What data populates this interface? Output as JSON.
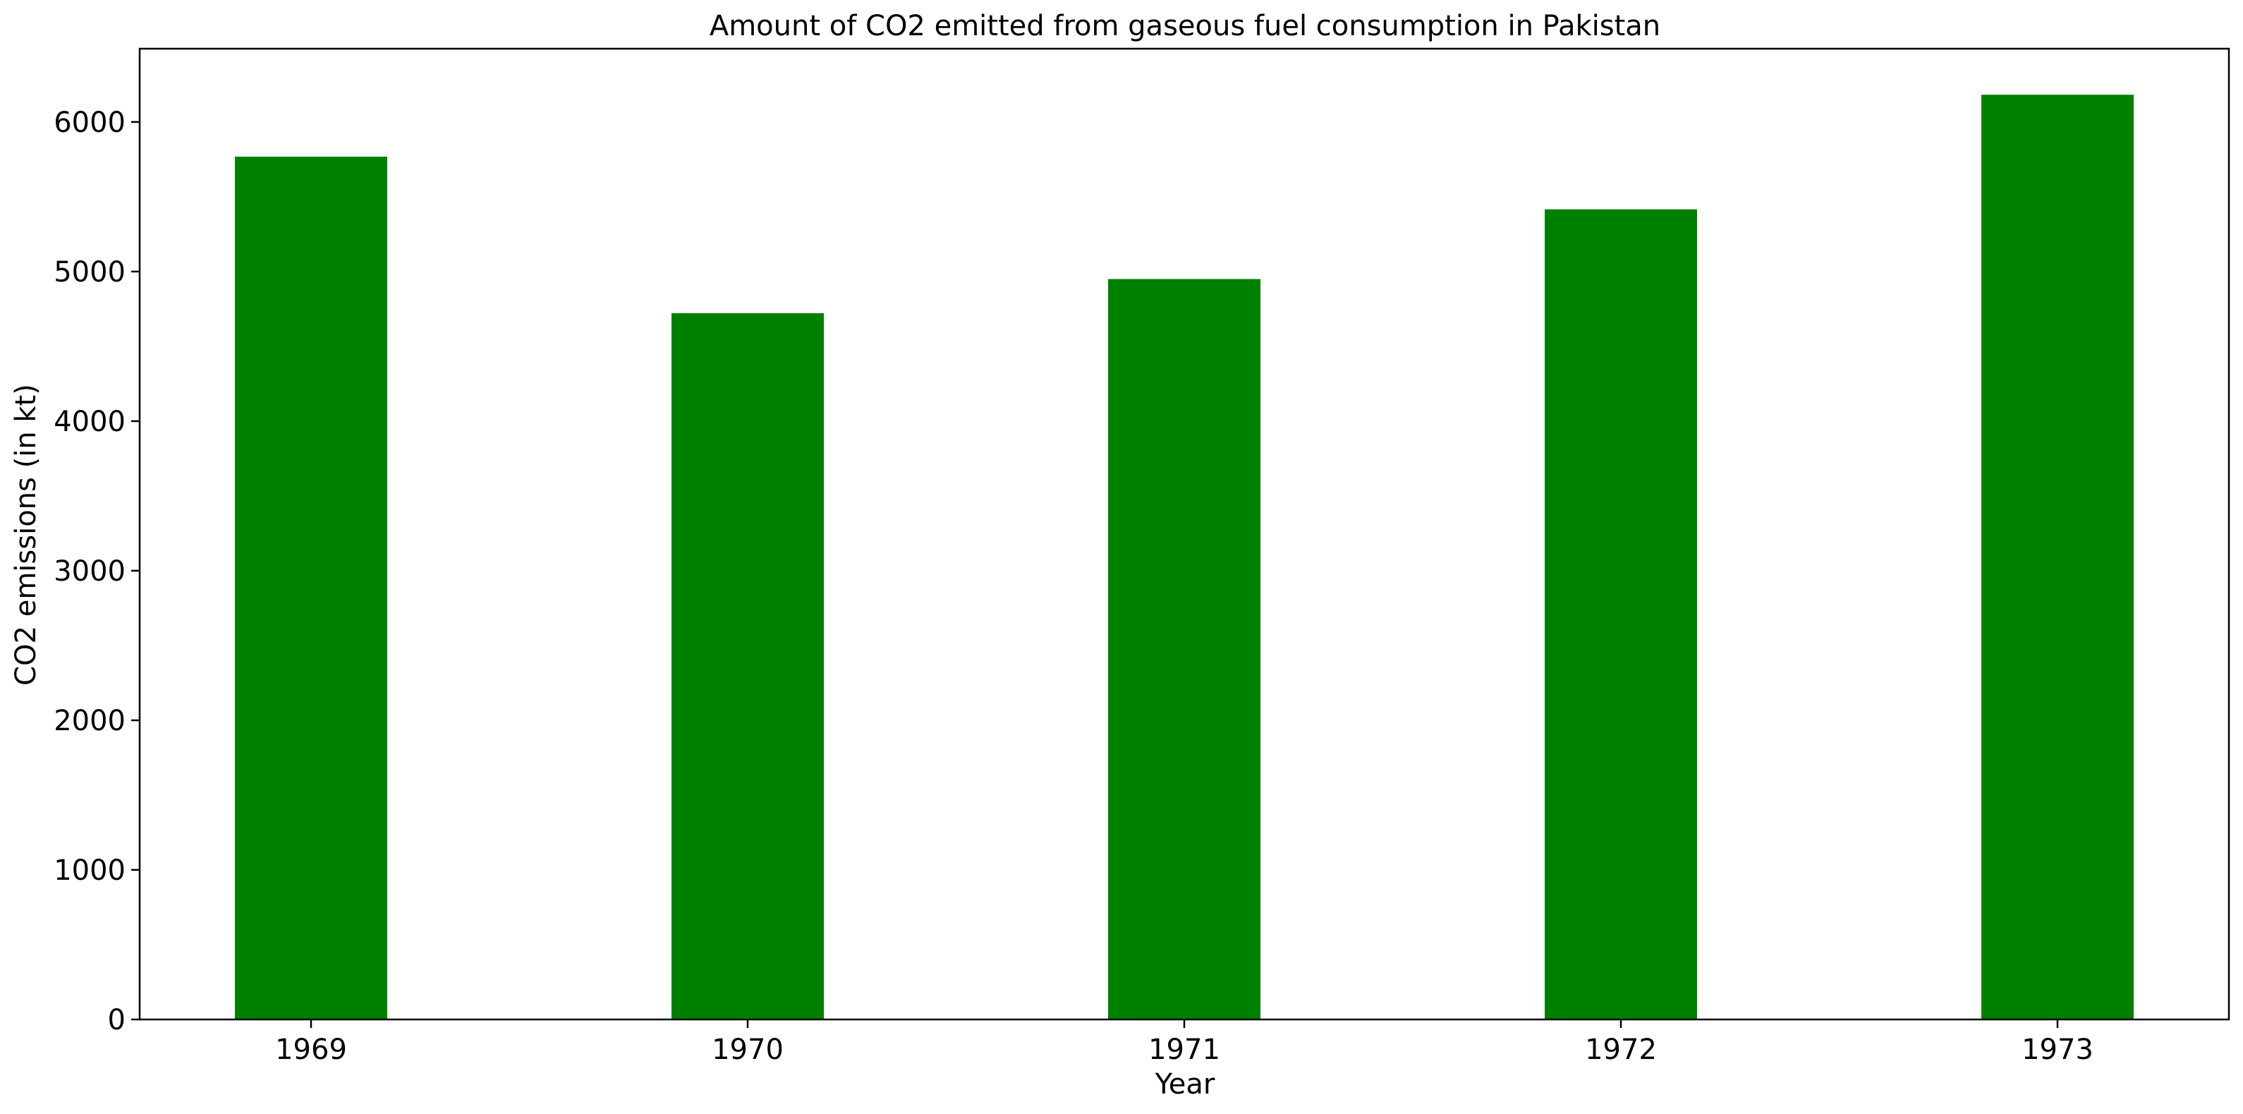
{
  "chart_data": {
    "type": "bar",
    "title": "Amount of CO2 emitted from gaseous fuel consumption in Pakistan",
    "xlabel": "Year",
    "ylabel": "CO2 emissions (in kt)",
    "categories": [
      "1969",
      "1970",
      "1971",
      "1972",
      "1973"
    ],
    "values": [
      5768,
      4722,
      4950,
      5416,
      6182
    ],
    "ylim": [
      0,
      6490
    ],
    "yticks": [
      0,
      1000,
      2000,
      3000,
      4000,
      5000,
      6000
    ],
    "ytick_labels": [
      "0",
      "1000",
      "2000",
      "3000",
      "4000",
      "5000",
      "6000"
    ],
    "bar_color": "#008000",
    "grid": false,
    "legend": "none"
  }
}
